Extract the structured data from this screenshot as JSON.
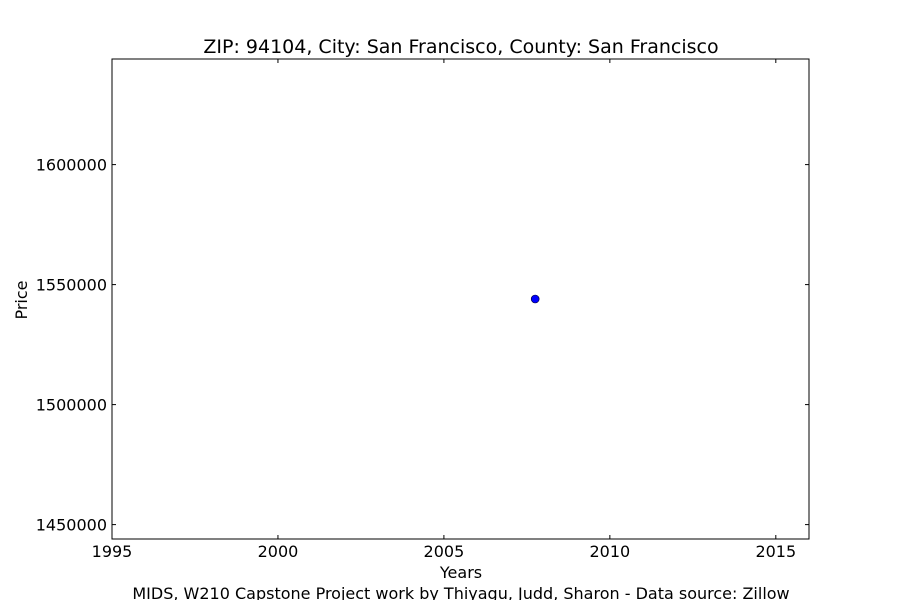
{
  "chart_data": {
    "type": "scatter",
    "title": "ZIP: 94104, City: San Francisco, County: San Francisco",
    "xlabel": "Years",
    "ylabel": "Price",
    "footer": "MIDS, W210 Capstone Project work by Thiyagu, Judd, Sharon  -  Data source: Zillow",
    "xlim": [
      1995,
      2016
    ],
    "ylim": [
      1444000,
      1644000
    ],
    "xticks": [
      1995,
      2000,
      2005,
      2010,
      2015
    ],
    "yticks": [
      1450000,
      1500000,
      1550000,
      1600000
    ],
    "grid": false,
    "marker_color": "#0000ff",
    "points": [
      {
        "x": 2007.75,
        "y": 1544000
      }
    ]
  }
}
